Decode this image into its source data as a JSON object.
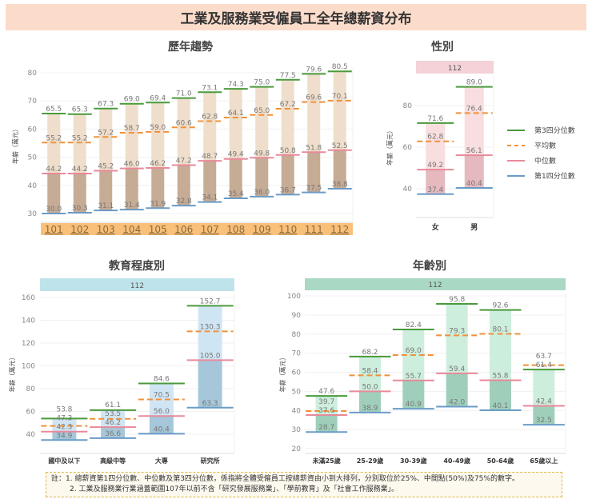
{
  "title": "工業及服務業受僱員工全年總薪資分布",
  "ylabel": "年薪（萬元）",
  "legend": [
    {
      "label": "第3四分位數",
      "color": "#4a9a3c",
      "dashed": false
    },
    {
      "label": "平均數",
      "color": "#f0913a",
      "dashed": true
    },
    {
      "label": "中位數",
      "color": "#e88a9a",
      "dashed": false
    },
    {
      "label": "第1四分位數",
      "color": "#6b9bc7",
      "dashed": false
    }
  ],
  "colors": {
    "q3": "#4a9a3c",
    "mean": "#f0913a",
    "median": "#e88a9a",
    "q1": "#6b9bc7"
  },
  "note": {
    "prefix": "註：",
    "line1": "1. 總薪資第1四分位數、中位數及第3四分位數，係指將全體受僱員工按總薪資由小到大排列，分別取位於25%、中間點(50%)及75%的數字。",
    "line2": "2. 工業及服務業行業涵蓋範圍107年以前不含「研究發展服務業」、「學前教育」及「社會工作服務業」。"
  },
  "chart_data": [
    {
      "type": "box-summary",
      "title": "歷年趨勢",
      "ylabel": "年薪（萬元）",
      "yticks": [
        30,
        40,
        50,
        60,
        70,
        80
      ],
      "ylim": [
        29,
        83
      ],
      "grid": true,
      "band_color": "#f9c07a",
      "categories": [
        "101",
        "102",
        "103",
        "104",
        "105",
        "106",
        "107",
        "108",
        "109",
        "110",
        "111",
        "112"
      ],
      "category_position": "bottom-band",
      "colors": {
        "lower": "#c6ab95",
        "upper": "#efdecb"
      },
      "q1": [
        30.0,
        30.3,
        31.1,
        31.4,
        31.9,
        32.8,
        34.1,
        35.4,
        36.0,
        36.7,
        37.5,
        38.8
      ],
      "median": [
        44.2,
        44.2,
        45.2,
        46.0,
        46.2,
        47.2,
        48.7,
        49.4,
        49.8,
        50.8,
        51.8,
        52.5
      ],
      "mean": [
        55.2,
        55.2,
        57.2,
        58.7,
        59.0,
        60.6,
        62.8,
        64.1,
        65.0,
        67.2,
        69.6,
        70.1
      ],
      "q3": [
        65.5,
        65.3,
        67.3,
        69.0,
        69.4,
        71.0,
        73.1,
        74.3,
        75.0,
        77.5,
        79.6,
        80.5
      ]
    },
    {
      "type": "box-summary",
      "title": "性別",
      "header": "112",
      "band_color": "#f4d2d8",
      "ylabel": "年薪（萬元）",
      "yticks": [
        40,
        60,
        80
      ],
      "ylim": [
        26,
        96
      ],
      "grid": true,
      "categories": [
        "女",
        "男"
      ],
      "colors": {
        "lower": "#e6b9be",
        "upper": "#f8dede"
      },
      "q1": [
        37.4,
        40.4
      ],
      "median": [
        49.2,
        56.1
      ],
      "mean": [
        62.8,
        76.4
      ],
      "q3": [
        71.6,
        89.0
      ],
      "legend": "right"
    },
    {
      "type": "box-summary",
      "title": "教育程度別",
      "header": "112",
      "band_color": "#bee3ea",
      "ylabel": "年薪（萬元）",
      "yticks": [
        40,
        60,
        80,
        100,
        120,
        140,
        160
      ],
      "ylim": [
        23,
        162
      ],
      "grid": true,
      "categories": [
        "國中及以下",
        "高級中等",
        "大專",
        "研究所"
      ],
      "colors": {
        "lower": "#a6c7d9",
        "upper": "#d0e5f3"
      },
      "q1": [
        34.9,
        36.6,
        40.4,
        63.3
      ],
      "median": [
        42.3,
        46.2,
        56.0,
        105.0
      ],
      "mean": [
        47.3,
        53.5,
        70.5,
        130.3
      ],
      "q3": [
        53.8,
        61.1,
        84.6,
        152.7
      ]
    },
    {
      "type": "box-summary",
      "title": "年齡別",
      "header": "112",
      "band_color": "#a9d8c4",
      "ylabel": "年薪（萬元）",
      "yticks": [
        20,
        30,
        40,
        50,
        60,
        70,
        80,
        90,
        100
      ],
      "ylim": [
        17,
        102
      ],
      "grid": true,
      "categories": [
        "未滿25歲",
        "25-29歲",
        "30-39歲",
        "40-49歲",
        "50-64歲",
        "65歲以上"
      ],
      "colors": {
        "lower": "#9fcfbb",
        "upper": "#cdeedd"
      },
      "q1": [
        28.7,
        38.9,
        40.9,
        42.0,
        40.1,
        32.5
      ],
      "median": [
        37.6,
        50.0,
        55.7,
        59.4,
        55.8,
        42.4
      ],
      "mean": [
        39.7,
        58.4,
        69.0,
        79.3,
        80.1,
        63.7
      ],
      "q3": [
        47.6,
        68.2,
        82.4,
        95.8,
        92.6,
        61.4
      ]
    }
  ]
}
